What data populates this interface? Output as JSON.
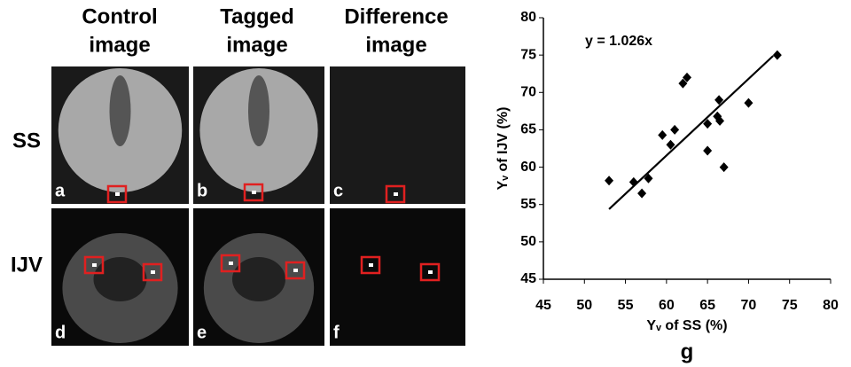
{
  "panels": {
    "columns": [
      [
        "Control",
        "image"
      ],
      [
        "Tagged",
        "image"
      ],
      [
        "Difference",
        "image"
      ]
    ],
    "rows": [
      "SS",
      "IJV"
    ],
    "letters": [
      "a",
      "b",
      "c",
      "d",
      "e",
      "f"
    ]
  },
  "chart_data": {
    "type": "scatter",
    "label": "g",
    "xlabel": "Yᵥ of SS (%)",
    "ylabel": "Yᵥ of IJV (%)",
    "annotation": "y = 1.026x",
    "fit": {
      "slope": 1.026,
      "x": [
        53,
        73
      ]
    },
    "x": [
      53,
      56,
      57,
      57.8,
      59.5,
      60.5,
      61,
      62,
      62.5,
      65,
      65,
      66.2,
      66.4,
      66.5,
      67,
      70,
      73.5
    ],
    "values": [
      58.2,
      58,
      56.5,
      58.5,
      64.3,
      63,
      65,
      71.2,
      72,
      65.8,
      62.2,
      66.8,
      69,
      66.2,
      60,
      68.6,
      75
    ],
    "color": "#000000",
    "xlim": [
      45,
      80
    ],
    "xticks": [
      45,
      50,
      55,
      60,
      65,
      70,
      75,
      80
    ],
    "ylim": [
      45,
      80
    ],
    "yticks": [
      45,
      50,
      55,
      60,
      65,
      70,
      75,
      80
    ]
  }
}
